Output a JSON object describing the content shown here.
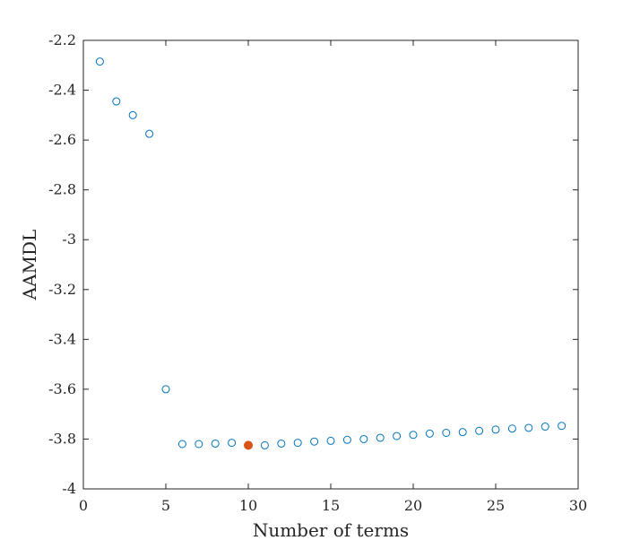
{
  "chart_data": {
    "type": "scatter",
    "title": "",
    "xlabel": "Number of terms",
    "ylabel": "AAMDL",
    "xlim": [
      0,
      30
    ],
    "ylim": [
      -4,
      -2.2
    ],
    "grid": false,
    "legend": "none",
    "x_ticks": [
      0,
      5,
      10,
      15,
      20,
      25,
      30
    ],
    "x_tick_labels": [
      "0",
      "5",
      "10",
      "15",
      "20",
      "25",
      "30"
    ],
    "y_ticks": [
      -4,
      -3.8,
      -3.6,
      -3.4,
      -3.2,
      -3,
      -2.8,
      -2.6,
      -2.4,
      -2.2
    ],
    "y_tick_labels": [
      "-4",
      "-3.8",
      "-3.6",
      "-3.4",
      "-3.2",
      "-3",
      "-2.8",
      "-2.6",
      "-2.4",
      "-2.2"
    ],
    "series": [
      {
        "color": "#0072BD",
        "marker": "open-circle",
        "points": [
          [
            1,
            -2.285
          ],
          [
            2,
            -2.445
          ],
          [
            3,
            -2.5
          ],
          [
            4,
            -2.575
          ],
          [
            5,
            -3.6
          ],
          [
            6,
            -3.82
          ],
          [
            7,
            -3.82
          ],
          [
            8,
            -3.818
          ],
          [
            9,
            -3.815
          ],
          [
            11,
            -3.825
          ],
          [
            12,
            -3.818
          ],
          [
            13,
            -3.815
          ],
          [
            14,
            -3.81
          ],
          [
            15,
            -3.807
          ],
          [
            16,
            -3.803
          ],
          [
            17,
            -3.8
          ],
          [
            18,
            -3.795
          ],
          [
            19,
            -3.788
          ],
          [
            20,
            -3.783
          ],
          [
            21,
            -3.778
          ],
          [
            22,
            -3.775
          ],
          [
            23,
            -3.772
          ],
          [
            24,
            -3.767
          ],
          [
            25,
            -3.762
          ],
          [
            26,
            -3.758
          ],
          [
            27,
            -3.755
          ],
          [
            28,
            -3.75
          ],
          [
            29,
            -3.747
          ]
        ]
      },
      {
        "color": "#D95319",
        "marker": "filled-circle",
        "points": [
          [
            10,
            -3.825
          ]
        ]
      }
    ]
  }
}
